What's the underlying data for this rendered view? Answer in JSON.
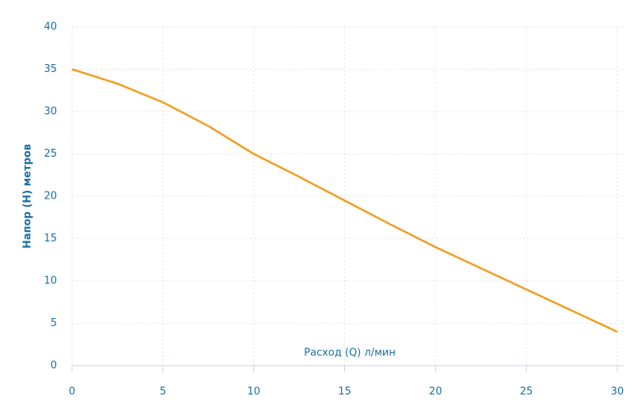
{
  "chart_data": {
    "type": "line",
    "x_label": "Расход (Q) л/мин",
    "y_label": "Напор (H) метров",
    "x": [
      0,
      2.5,
      5,
      7.5,
      10,
      12.5,
      15,
      17.5,
      20,
      22.5,
      25,
      27.5,
      30
    ],
    "series": [
      {
        "name": "Напор",
        "color": "#f39c1f",
        "values": [
          35,
          33.3,
          31.1,
          28.3,
          25,
          22.3,
          19.5,
          16.7,
          14,
          11.5,
          9,
          6.5,
          4
        ]
      }
    ],
    "xlim": [
      0,
      30
    ],
    "xticks": [
      0,
      5,
      10,
      15,
      20,
      25,
      30
    ],
    "ylim": [
      0,
      40
    ],
    "yticks": [
      0,
      5,
      10,
      15,
      20,
      25,
      30,
      35,
      40
    ],
    "grid": true
  }
}
